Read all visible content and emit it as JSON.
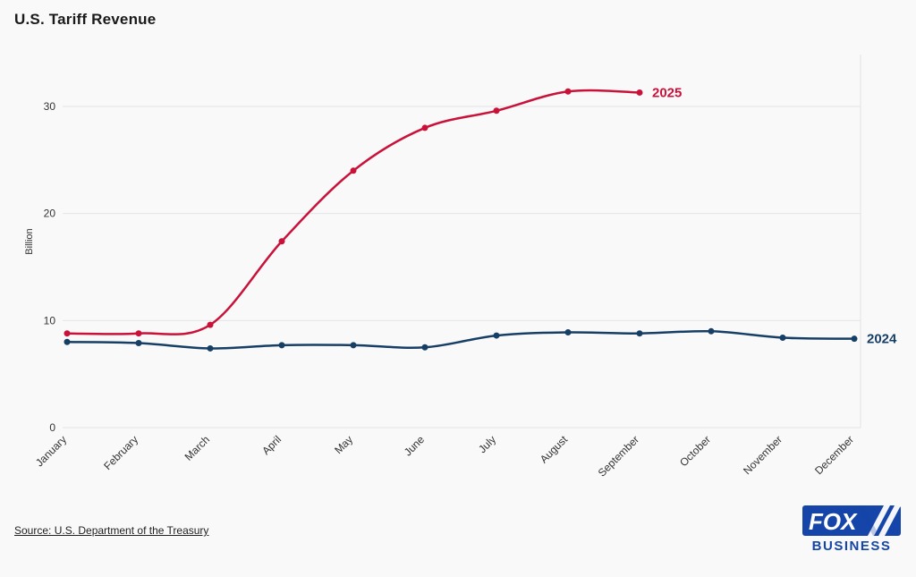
{
  "page": {
    "source": "Source: U.S. Department of the Treasury"
  },
  "logo": {
    "line1": "FOX",
    "line2": "BUSINESS",
    "blue": "#1545a8"
  },
  "chart_data": {
    "type": "line",
    "title": "U.S. Tariff Revenue",
    "xlabel": "",
    "ylabel": "Billion",
    "categories": [
      "January",
      "February",
      "March",
      "April",
      "May",
      "June",
      "July",
      "August",
      "September",
      "October",
      "November",
      "December"
    ],
    "yticks": [
      0,
      10,
      20,
      30
    ],
    "ylim": [
      0,
      35
    ],
    "grid": true,
    "legend_position": "end-of-line",
    "series": [
      {
        "name": "2025",
        "color": "#c9123a",
        "values": [
          8.8,
          8.8,
          9.6,
          17.4,
          24.0,
          28.0,
          29.6,
          31.4,
          31.3
        ]
      },
      {
        "name": "2024",
        "color": "#173f66",
        "values": [
          8.0,
          7.9,
          7.4,
          7.7,
          7.7,
          7.5,
          8.6,
          8.9,
          8.8,
          9.0,
          8.4,
          8.3
        ]
      }
    ],
    "grid_color": "#e4e4e7",
    "tick_color": "#333333"
  }
}
